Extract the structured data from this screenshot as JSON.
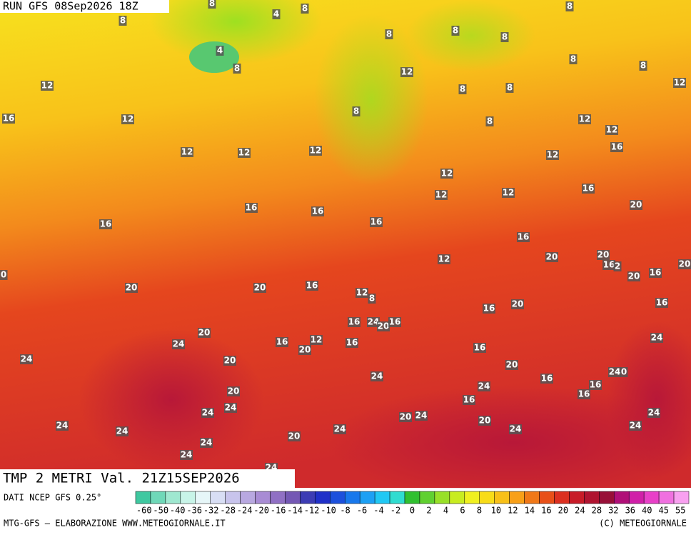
{
  "header": {
    "run": "RUN GFS 08Sep2026 18Z"
  },
  "map": {
    "title": "TMP 2 METRI Val. 21Z15SEP2026",
    "labels": [
      8,
      4,
      8,
      8,
      8,
      8,
      8,
      8,
      4,
      8,
      8,
      8,
      12,
      12,
      8,
      8,
      12,
      16,
      12,
      8,
      8,
      12,
      12,
      12,
      12,
      12,
      12,
      16,
      12,
      12,
      12,
      16,
      16,
      16,
      20,
      16,
      16,
      16,
      12,
      20,
      20,
      16,
      2,
      0,
      20,
      16,
      20,
      20,
      20,
      16,
      12,
      8,
      16,
      20,
      16,
      20,
      16,
      24,
      20,
      16,
      12,
      16,
      20,
      16,
      24,
      24,
      16,
      24,
      20,
      20,
      24,
      16,
      24,
      0,
      20,
      24,
      16,
      16,
      16,
      24,
      24,
      24,
      20,
      24,
      20,
      24,
      24,
      24,
      24,
      24,
      20,
      24,
      24,
      24
    ]
  },
  "legend": {
    "source": "DATI NCEP GFS 0.25°",
    "ticks": [
      -60,
      -50,
      -40,
      -36,
      -32,
      -28,
      -24,
      -20,
      -16,
      -14,
      -12,
      -10,
      -8,
      -6,
      -4,
      -2,
      0,
      2,
      4,
      6,
      8,
      10,
      12,
      14,
      16,
      20,
      24,
      28,
      32,
      36,
      40,
      45,
      55
    ],
    "colors": [
      "#3fc8a0",
      "#6fd8b8",
      "#9fe8d0",
      "#c8f4e8",
      "#e6f6f8",
      "#d8def4",
      "#c8c4ec",
      "#b8a8e0",
      "#a88cd4",
      "#9070c4",
      "#7458b4",
      "#3c3cb4",
      "#2030c8",
      "#1c50dc",
      "#1878ec",
      "#1ca0f4",
      "#20c8f4",
      "#30dcd0",
      "#30c030",
      "#60d030",
      "#98e028",
      "#c8ec20",
      "#f0f020",
      "#f8dc18",
      "#f8c018",
      "#f8a018",
      "#f07818",
      "#e85018",
      "#dc3020",
      "#c81c28",
      "#b01430",
      "#981038",
      "#b01078",
      "#d020a8",
      "#e840c8",
      "#f070e0",
      "#f8a0f0"
    ]
  },
  "footer": {
    "left": "MTG-GFS — ELABORAZIONE WWW.METEOGIORNALE.IT",
    "right": "(C) METEOGIORNALE"
  }
}
